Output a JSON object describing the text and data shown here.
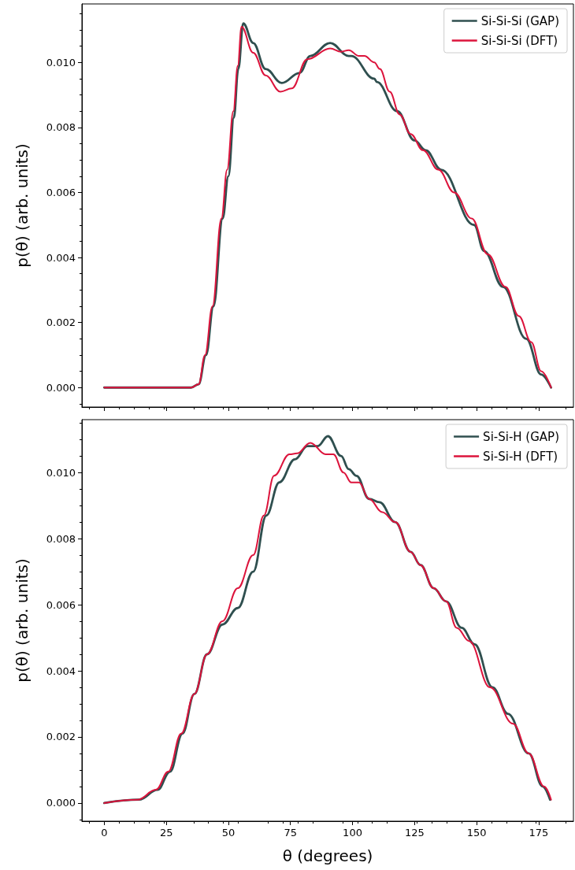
{
  "chart_data": [
    {
      "type": "line",
      "ylabel": "p(θ) (arb. units)",
      "xlim": [
        -9,
        189
      ],
      "xticks": [
        0,
        25,
        50,
        75,
        100,
        125,
        150,
        175
      ],
      "ylim": [
        -0.0006,
        0.0118
      ],
      "yticks": [
        {
          "value": 0,
          "label": "0.000"
        },
        {
          "value": 0.002,
          "label": "0.002"
        },
        {
          "value": 0.004,
          "label": "0.004"
        },
        {
          "value": 0.006,
          "label": "0.006"
        },
        {
          "value": 0.008,
          "label": "0.008"
        },
        {
          "value": 0.01,
          "label": "0.010"
        }
      ],
      "tick_labels": "y",
      "legend": "top right",
      "grid": false,
      "series": [
        {
          "name": "Si-Si-Si (GAP)",
          "color": "#2f4f4f",
          "x": [
            0,
            35,
            38,
            41,
            44,
            47.7,
            50,
            52.2,
            54,
            56,
            60,
            65,
            71.5,
            78.7,
            83,
            91,
            98.5,
            99.5,
            108.8,
            109.8,
            118,
            125,
            129.5,
            135.7,
            149,
            153,
            160.6,
            170,
            176,
            180
          ],
          "values": [
            0,
            0,
            0.0001,
            0.001,
            0.0025,
            0.0052,
            0.0065,
            0.0083,
            0.0098,
            0.0112,
            0.0106,
            0.0098,
            0.00937,
            0.00968,
            0.0102,
            0.0106,
            0.0102,
            0.0102,
            0.0095,
            0.0094,
            0.0085,
            0.0076,
            0.0073,
            0.0067,
            0.005,
            0.0042,
            0.0031,
            0.0015,
            0.0004,
            0
          ]
        },
        {
          "name": "Si-Si-Si (DFT)",
          "color": "#dc143c",
          "x": [
            0,
            35,
            38,
            40.6,
            43.6,
            47.2,
            49.5,
            52,
            53.8,
            55.3,
            60,
            65,
            71,
            75.5,
            81.8,
            91,
            95.4,
            98.5,
            102.6,
            104.8,
            108.8,
            111,
            115,
            119,
            123.4,
            128.4,
            134.6,
            141,
            148,
            154.5,
            161.6,
            167,
            172,
            176,
            180
          ],
          "values": [
            0,
            0,
            0.0001,
            0.001,
            0.0025,
            0.0052,
            0.0067,
            0.0085,
            0.0099,
            0.0111,
            0.0103,
            0.0096,
            0.0091,
            0.0092,
            0.0101,
            0.01043,
            0.01033,
            0.01038,
            0.0102,
            0.0102,
            0.01,
            0.0098,
            0.0091,
            0.0084,
            0.0078,
            0.0073,
            0.0067,
            0.006,
            0.0052,
            0.0041,
            0.0031,
            0.0022,
            0.0014,
            0.0005,
            0
          ]
        }
      ]
    },
    {
      "type": "line",
      "xlabel": "θ (degrees)",
      "ylabel": "p(θ) (arb. units)",
      "xlim": [
        -9,
        189
      ],
      "xticks": [
        0,
        25,
        50,
        75,
        100,
        125,
        150,
        175
      ],
      "ylim": [
        -0.00055,
        0.0116
      ],
      "yticks": [
        {
          "value": 0,
          "label": "0.000"
        },
        {
          "value": 0.002,
          "label": "0.002"
        },
        {
          "value": 0.004,
          "label": "0.004"
        },
        {
          "value": 0.006,
          "label": "0.006"
        },
        {
          "value": 0.008,
          "label": "0.008"
        },
        {
          "value": 0.01,
          "label": "0.010"
        }
      ],
      "legend": "top right",
      "grid": false,
      "series": [
        {
          "name": "Si-Si-H (GAP)",
          "color": "#2f4f4f",
          "x": [
            0,
            14,
            21.5,
            26.5,
            31.5,
            36.3,
            41.4,
            47.6,
            53.8,
            60,
            65.3,
            70.5,
            76.8,
            81.8,
            86,
            90.1,
            95.4,
            98.5,
            101.6,
            106.7,
            110.9,
            117.2,
            123.4,
            127.4,
            132.7,
            137.7,
            144,
            149.2,
            156.4,
            162.6,
            171,
            176.6,
            179.6
          ],
          "values": [
            0,
            0.0001,
            0.0004,
            0.00095,
            0.0021,
            0.0033,
            0.0045,
            0.0054,
            0.0059,
            0.007,
            0.0087,
            0.0097,
            0.0104,
            0.0108,
            0.0108,
            0.0111,
            0.0105,
            0.0101,
            0.0099,
            0.0092,
            0.0091,
            0.0085,
            0.0076,
            0.0072,
            0.0065,
            0.0061,
            0.0053,
            0.0048,
            0.0035,
            0.0027,
            0.0015,
            0.0005,
            0.0001
          ]
        },
        {
          "name": "Si-Si-H (DFT)",
          "color": "#dc143c",
          "x": [
            0,
            13.4,
            20.8,
            25.8,
            31,
            36.3,
            41.4,
            47.6,
            53.8,
            60,
            64.3,
            68.4,
            74.6,
            77.7,
            83,
            89.2,
            92.3,
            96.4,
            99.5,
            102.6,
            106.7,
            112,
            117.2,
            123.4,
            127.4,
            132.7,
            137.7,
            142,
            147,
            155.4,
            164.7,
            171,
            177.2,
            180
          ],
          "values": [
            0,
            0.0001,
            0.0004,
            0.00095,
            0.0021,
            0.0033,
            0.0045,
            0.0055,
            0.0065,
            0.0075,
            0.0087,
            0.0099,
            0.01055,
            0.01058,
            0.0109,
            0.01055,
            0.01055,
            0.01,
            0.0097,
            0.0097,
            0.0092,
            0.0088,
            0.0085,
            0.0076,
            0.0072,
            0.0065,
            0.0061,
            0.0053,
            0.0049,
            0.0035,
            0.0024,
            0.0015,
            0.0005,
            0.0001
          ]
        }
      ]
    }
  ]
}
